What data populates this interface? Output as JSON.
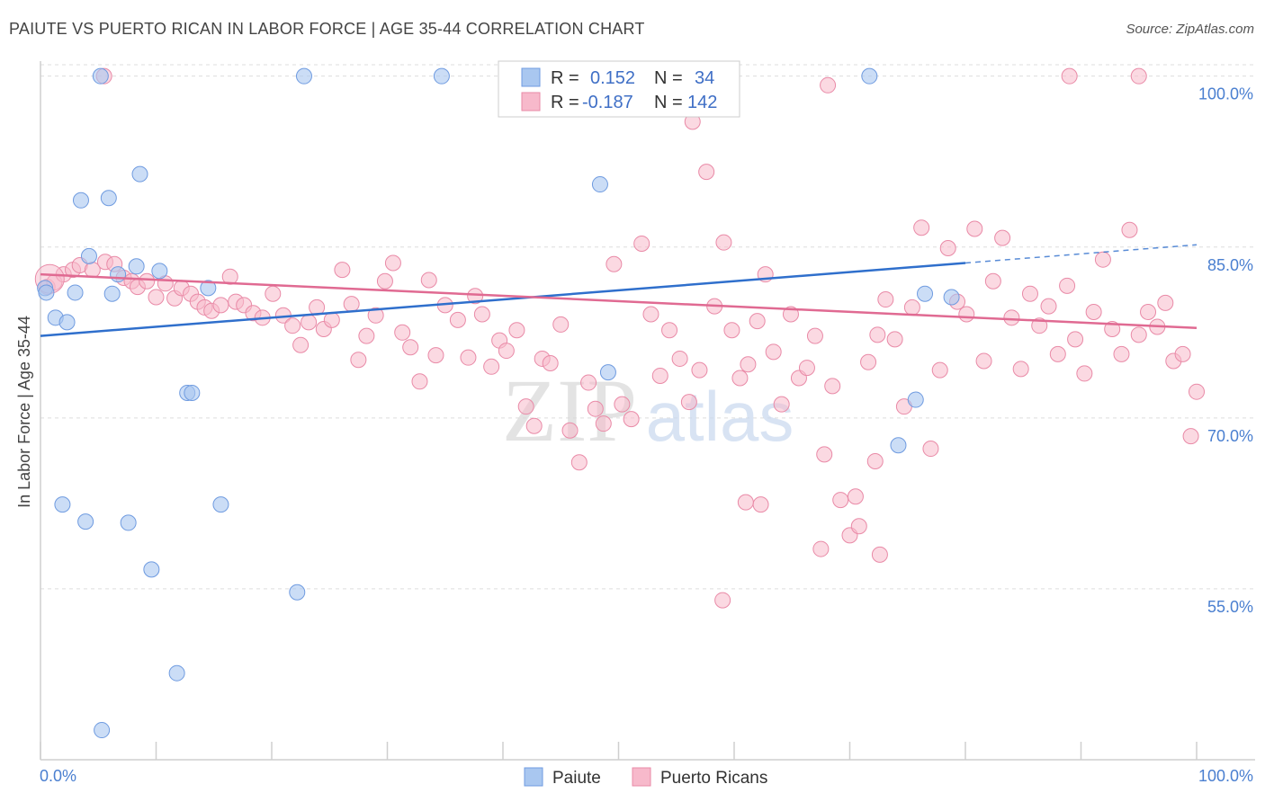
{
  "header": {
    "title": "PAIUTE VS PUERTO RICAN IN LABOR FORCE | AGE 35-44 CORRELATION CHART",
    "source": "Source: ZipAtlas.com"
  },
  "watermark": {
    "zip": "ZIP",
    "atlas": "atlas"
  },
  "colors": {
    "paiute_fill": "#a9c7f0",
    "paiute_stroke": "#6f9be0",
    "paiute_line": "#2f6fcc",
    "pr_fill": "#f7b9cb",
    "pr_stroke": "#e98aa7",
    "pr_line": "#e06a92",
    "grid": "#dddddd",
    "tick_label": "#4a7fd0"
  },
  "legend": {
    "rows": [
      {
        "r_label": "R =",
        "r_value": "0.152",
        "n_label": "N =",
        "n_value": "34"
      },
      {
        "r_label": "R =",
        "r_value": "-0.187",
        "n_label": "N =",
        "n_value": "142"
      }
    ]
  },
  "chart_data": {
    "type": "scatter",
    "title": "PAIUTE VS PUERTO RICAN IN LABOR FORCE | AGE 35-44 CORRELATION CHART",
    "xlabel": "",
    "ylabel": "In Labor Force | Age 35-44",
    "xlim": [
      0,
      100
    ],
    "ylim": [
      40,
      101
    ],
    "x_tick_labels": [
      "0.0%",
      "100.0%"
    ],
    "y_ticks": [
      55,
      70,
      85,
      100
    ],
    "y_tick_labels": [
      "55.0%",
      "70.0%",
      "85.0%",
      "100.0%"
    ],
    "grid": true,
    "legend_position": "top-center",
    "series": [
      {
        "name": "Paiute",
        "r": 0.152,
        "n": 34,
        "trend": {
          "x0": 0,
          "y0": 77.2,
          "x1": 80,
          "y1": 83.6,
          "dash_to_x": 100,
          "dash_to_y": 85.2
        },
        "points": [
          [
            5.2,
            100
          ],
          [
            22.8,
            100
          ],
          [
            34.7,
            100
          ],
          [
            71.7,
            100
          ],
          [
            8.6,
            91.4
          ],
          [
            48.4,
            90.5
          ],
          [
            3.5,
            89.1
          ],
          [
            5.9,
            89.3
          ],
          [
            4.2,
            84.2
          ],
          [
            8.3,
            83.3
          ],
          [
            6.7,
            82.6
          ],
          [
            10.3,
            82.9
          ],
          [
            0.4,
            81.4
          ],
          [
            3.0,
            81.0
          ],
          [
            6.2,
            80.9
          ],
          [
            14.5,
            81.4
          ],
          [
            1.3,
            78.8
          ],
          [
            2.3,
            78.4
          ],
          [
            78.8,
            80.6
          ],
          [
            76.5,
            80.9
          ],
          [
            49.1,
            74.0
          ],
          [
            12.7,
            72.2
          ],
          [
            13.1,
            72.2
          ],
          [
            75.7,
            71.6
          ],
          [
            74.2,
            67.6
          ],
          [
            1.9,
            62.4
          ],
          [
            3.9,
            60.9
          ],
          [
            7.6,
            60.8
          ],
          [
            15.6,
            62.4
          ],
          [
            9.6,
            56.7
          ],
          [
            22.2,
            54.7
          ],
          [
            11.8,
            47.6
          ],
          [
            5.3,
            42.6
          ],
          [
            0.5,
            81.0
          ]
        ]
      },
      {
        "name": "Puerto Ricans",
        "r": -0.187,
        "n": 142,
        "trend": {
          "x0": 0,
          "y0": 82.6,
          "x1": 100,
          "y1": 77.9
        },
        "points": [
          [
            0.6,
            81.5
          ],
          [
            1.2,
            81.9
          ],
          [
            2.0,
            82.6
          ],
          [
            2.8,
            83.0
          ],
          [
            3.4,
            83.4
          ],
          [
            4.5,
            83.0
          ],
          [
            5.6,
            83.7
          ],
          [
            6.4,
            83.5
          ],
          [
            7.2,
            82.3
          ],
          [
            7.9,
            82.0
          ],
          [
            8.4,
            81.5
          ],
          [
            9.2,
            82.0
          ],
          [
            10.0,
            80.6
          ],
          [
            10.8,
            81.8
          ],
          [
            11.6,
            80.5
          ],
          [
            12.2,
            81.4
          ],
          [
            13.0,
            80.9
          ],
          [
            13.6,
            80.2
          ],
          [
            14.2,
            79.7
          ],
          [
            14.8,
            79.4
          ],
          [
            15.6,
            79.9
          ],
          [
            16.4,
            82.4
          ],
          [
            16.9,
            80.2
          ],
          [
            17.6,
            79.9
          ],
          [
            18.4,
            79.2
          ],
          [
            19.2,
            78.8
          ],
          [
            20.1,
            80.9
          ],
          [
            21.0,
            79.0
          ],
          [
            21.8,
            78.1
          ],
          [
            22.5,
            76.4
          ],
          [
            23.2,
            78.4
          ],
          [
            23.9,
            79.7
          ],
          [
            24.5,
            77.8
          ],
          [
            25.2,
            78.6
          ],
          [
            26.1,
            83.0
          ],
          [
            26.9,
            80.0
          ],
          [
            27.5,
            75.1
          ],
          [
            28.2,
            77.2
          ],
          [
            29.0,
            79.0
          ],
          [
            29.8,
            82.0
          ],
          [
            30.5,
            83.6
          ],
          [
            31.3,
            77.5
          ],
          [
            32.0,
            76.2
          ],
          [
            32.8,
            73.2
          ],
          [
            33.6,
            82.1
          ],
          [
            34.2,
            75.5
          ],
          [
            35.0,
            79.9
          ],
          [
            36.1,
            78.6
          ],
          [
            37.0,
            75.3
          ],
          [
            37.6,
            80.7
          ],
          [
            38.2,
            79.1
          ],
          [
            39.0,
            74.5
          ],
          [
            39.7,
            76.8
          ],
          [
            40.3,
            75.9
          ],
          [
            41.2,
            77.7
          ],
          [
            42.0,
            71.0
          ],
          [
            42.7,
            69.3
          ],
          [
            43.4,
            75.2
          ],
          [
            44.1,
            74.8
          ],
          [
            45.0,
            78.2
          ],
          [
            45.8,
            68.9
          ],
          [
            46.6,
            66.1
          ],
          [
            47.4,
            73.1
          ],
          [
            48.0,
            70.8
          ],
          [
            48.7,
            69.5
          ],
          [
            49.6,
            83.5
          ],
          [
            50.3,
            71.2
          ],
          [
            51.1,
            69.9
          ],
          [
            52.0,
            85.3
          ],
          [
            52.8,
            79.1
          ],
          [
            53.6,
            73.7
          ],
          [
            54.4,
            77.7
          ],
          [
            55.3,
            75.2
          ],
          [
            56.1,
            71.4
          ],
          [
            57.0,
            74.2
          ],
          [
            57.6,
            91.6
          ],
          [
            58.3,
            79.8
          ],
          [
            59.1,
            85.4
          ],
          [
            59.8,
            77.7
          ],
          [
            60.5,
            73.5
          ],
          [
            61.2,
            74.7
          ],
          [
            62.0,
            78.5
          ],
          [
            62.7,
            82.6
          ],
          [
            63.4,
            75.8
          ],
          [
            64.1,
            71.2
          ],
          [
            64.9,
            79.1
          ],
          [
            65.6,
            73.5
          ],
          [
            66.3,
            74.4
          ],
          [
            67.0,
            77.2
          ],
          [
            67.8,
            66.8
          ],
          [
            68.5,
            72.8
          ],
          [
            69.2,
            62.8
          ],
          [
            70.0,
            59.7
          ],
          [
            70.8,
            60.5
          ],
          [
            71.6,
            74.9
          ],
          [
            72.4,
            77.3
          ],
          [
            73.1,
            80.4
          ],
          [
            73.9,
            76.9
          ],
          [
            74.7,
            71.0
          ],
          [
            75.4,
            79.7
          ],
          [
            76.2,
            86.7
          ],
          [
            77.0,
            67.3
          ],
          [
            77.8,
            74.2
          ],
          [
            78.5,
            84.9
          ],
          [
            79.3,
            80.2
          ],
          [
            80.1,
            79.1
          ],
          [
            80.8,
            86.6
          ],
          [
            81.6,
            75.0
          ],
          [
            82.4,
            82.0
          ],
          [
            83.2,
            85.8
          ],
          [
            84.0,
            78.8
          ],
          [
            84.8,
            74.3
          ],
          [
            85.6,
            80.9
          ],
          [
            86.4,
            78.1
          ],
          [
            87.2,
            79.8
          ],
          [
            88.0,
            75.6
          ],
          [
            88.8,
            81.6
          ],
          [
            89.5,
            76.9
          ],
          [
            90.3,
            73.9
          ],
          [
            91.1,
            79.3
          ],
          [
            91.9,
            83.9
          ],
          [
            92.7,
            77.8
          ],
          [
            93.5,
            75.6
          ],
          [
            94.2,
            86.5
          ],
          [
            95.0,
            77.3
          ],
          [
            95.8,
            79.3
          ],
          [
            96.6,
            78.0
          ],
          [
            97.3,
            80.1
          ],
          [
            98.0,
            75.0
          ],
          [
            98.8,
            75.6
          ],
          [
            99.5,
            68.4
          ],
          [
            100.0,
            72.3
          ],
          [
            5.5,
            100
          ],
          [
            56.4,
            96.0
          ],
          [
            68.1,
            99.2
          ],
          [
            89.0,
            100
          ],
          [
            95.0,
            100
          ],
          [
            72.2,
            66.2
          ],
          [
            70.5,
            63.1
          ],
          [
            62.3,
            62.4
          ],
          [
            67.5,
            58.5
          ],
          [
            72.6,
            58.0
          ],
          [
            61.0,
            62.6
          ],
          [
            59.0,
            54.0
          ]
        ]
      }
    ]
  },
  "bottom_legend": {
    "items": [
      "Paiute",
      "Puerto Ricans"
    ]
  }
}
